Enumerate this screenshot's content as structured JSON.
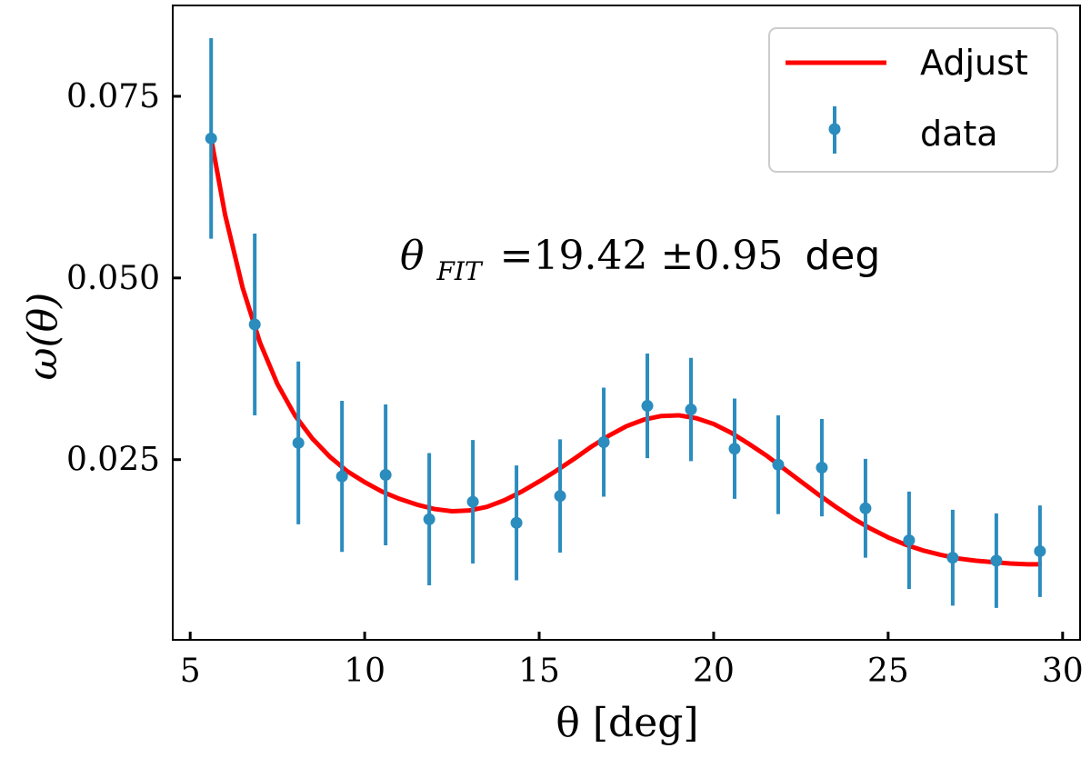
{
  "chart_data": {
    "type": "scatter",
    "title": "",
    "xlabel": "θ [deg]",
    "ylabel": "ω(θ)",
    "xlim": [
      4.5,
      30.5
    ],
    "ylim": [
      0.0002,
      0.0875
    ],
    "xticks": [
      5,
      10,
      15,
      20,
      25,
      30
    ],
    "xtick_labels": [
      "5",
      "10",
      "15",
      "20",
      "25",
      "30"
    ],
    "yticks": [
      0.025,
      0.05,
      0.075
    ],
    "ytick_labels": [
      "0.025",
      "0.050",
      "0.075"
    ],
    "grid": false,
    "legend_position": "top-right",
    "annotation": {
      "symbol": "θ",
      "subscript": "FIT",
      "text": "=19.42 ±0.95",
      "unit": "deg"
    },
    "series": [
      {
        "name": "Adjust",
        "kind": "line",
        "color": "#ff0000",
        "x": [
          5.6,
          6.0,
          6.5,
          7.0,
          7.5,
          8.0,
          8.5,
          9.0,
          9.5,
          10.0,
          10.5,
          11.0,
          11.5,
          12.0,
          12.5,
          13.0,
          13.5,
          14.0,
          14.5,
          15.0,
          15.5,
          16.0,
          16.5,
          17.0,
          17.5,
          18.0,
          18.5,
          19.0,
          19.5,
          20.0,
          20.5,
          21.0,
          21.5,
          22.0,
          22.5,
          23.0,
          23.5,
          24.0,
          24.5,
          25.0,
          25.5,
          26.0,
          26.5,
          27.0,
          27.5,
          28.0,
          28.5,
          29.0,
          29.4
        ],
        "y": [
          0.0692,
          0.0587,
          0.0487,
          0.0411,
          0.0354,
          0.0311,
          0.0279,
          0.0254,
          0.0234,
          0.0219,
          0.0206,
          0.0196,
          0.0188,
          0.0182,
          0.0179,
          0.018,
          0.0185,
          0.0194,
          0.0206,
          0.022,
          0.0235,
          0.0251,
          0.0268,
          0.0283,
          0.0296,
          0.0305,
          0.031,
          0.0311,
          0.0307,
          0.0299,
          0.0287,
          0.0272,
          0.0256,
          0.0238,
          0.022,
          0.0202,
          0.0185,
          0.0169,
          0.0155,
          0.0143,
          0.0133,
          0.0125,
          0.0119,
          0.0114,
          0.0111,
          0.0109,
          0.0107,
          0.0106,
          0.0106
        ]
      },
      {
        "name": "data",
        "kind": "errorbar",
        "color": "#2b8cbe",
        "x": [
          5.6,
          6.85,
          8.1,
          9.35,
          10.6,
          11.85,
          13.1,
          14.35,
          15.6,
          16.85,
          18.1,
          19.35,
          20.6,
          21.85,
          23.1,
          24.35,
          25.6,
          26.85,
          28.1,
          29.35
        ],
        "y": [
          0.0692,
          0.0436,
          0.0273,
          0.0227,
          0.0229,
          0.0168,
          0.0192,
          0.0163,
          0.02,
          0.0274,
          0.0324,
          0.0319,
          0.0265,
          0.0243,
          0.0239,
          0.0183,
          0.0139,
          0.0115,
          0.0111,
          0.0124
        ],
        "err": [
          0.0138,
          0.0125,
          0.0112,
          0.0104,
          0.0097,
          0.0091,
          0.0085,
          0.0079,
          0.0078,
          0.0075,
          0.0072,
          0.0071,
          0.0069,
          0.0068,
          0.0067,
          0.0068,
          0.0067,
          0.0066,
          0.0065,
          0.0063
        ]
      }
    ]
  }
}
